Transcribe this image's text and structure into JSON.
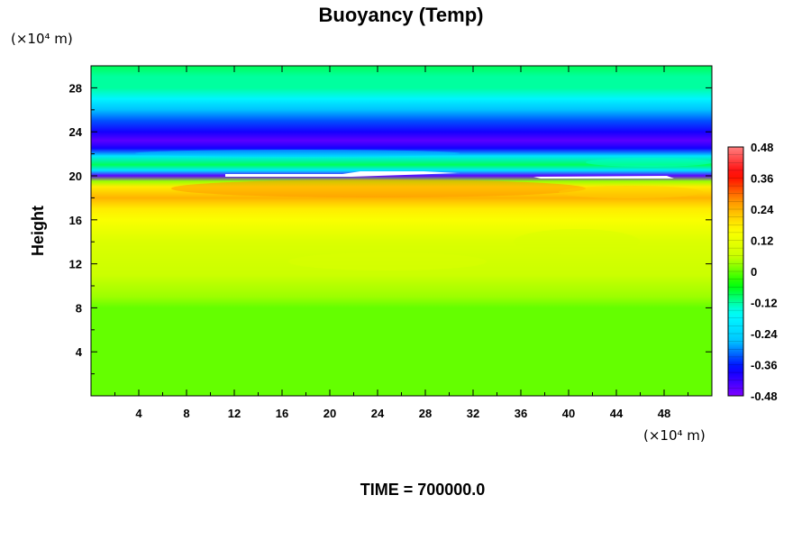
{
  "chart_data": {
    "type": "heatmap",
    "title": "Buoyancy (Temp)",
    "ylabel": "Height",
    "xlabel": "",
    "y_unit_label": "(×10⁴ m)",
    "x_unit_label": "(×10⁴ m)",
    "footer": "TIME = 700000.0",
    "xlim": [
      0,
      52
    ],
    "ylim": [
      0,
      30
    ],
    "x_ticks": [
      "4",
      "8",
      "12",
      "16",
      "20",
      "24",
      "28",
      "32",
      "36",
      "40",
      "44",
      "48"
    ],
    "y_ticks": [
      "4",
      "8",
      "12",
      "16",
      "20",
      "24",
      "28"
    ],
    "colorbar": {
      "range": [
        -0.48,
        0.48
      ],
      "labels": [
        "0.48",
        "0.36",
        "0.24",
        "0.12",
        "0",
        "-0.12",
        "-0.24",
        "-0.36",
        "-0.48"
      ]
    },
    "colormap": [
      "#7f00ff",
      "#0000ff",
      "#00c8ff",
      "#00ffff",
      "#00ff00",
      "#c8ff00",
      "#ffff00",
      "#ff9900",
      "#ff0000",
      "#ff8080"
    ],
    "profile": [
      {
        "y": 0,
        "value": 0.0
      },
      {
        "y": 8,
        "value": 0.0
      },
      {
        "y": 9,
        "value": 0.04
      },
      {
        "y": 11,
        "value": 0.06
      },
      {
        "y": 14,
        "value": 0.1
      },
      {
        "y": 16,
        "value": 0.14
      },
      {
        "y": 17,
        "value": 0.18
      },
      {
        "y": 18,
        "value": 0.24
      },
      {
        "y": 19,
        "value": 0.18
      },
      {
        "y": 19.5,
        "value": 0.02
      },
      {
        "y": 20,
        "value": -0.44
      },
      {
        "y": 20.5,
        "value": -0.2
      },
      {
        "y": 21,
        "value": -0.08
      },
      {
        "y": 21.8,
        "value": -0.22
      },
      {
        "y": 22.5,
        "value": -0.38
      },
      {
        "y": 23.2,
        "value": -0.46
      },
      {
        "y": 24,
        "value": -0.4
      },
      {
        "y": 25,
        "value": -0.34
      },
      {
        "y": 26,
        "value": -0.26
      },
      {
        "y": 27,
        "value": -0.18
      },
      {
        "y": 28,
        "value": -0.13
      },
      {
        "y": 29,
        "value": -0.11
      },
      {
        "y": 30,
        "value": -0.1
      }
    ]
  }
}
